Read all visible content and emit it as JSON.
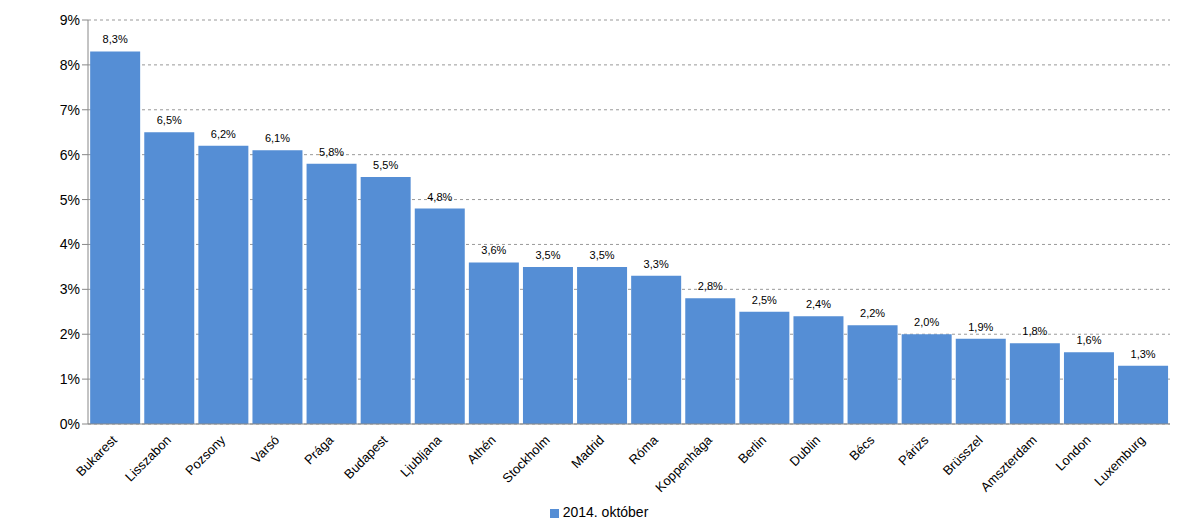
{
  "chart_data": {
    "type": "bar",
    "categories": [
      "Bukarest",
      "Lisszabon",
      "Pozsony",
      "Varsó",
      "Prága",
      "Budapest",
      "Ljubljana",
      "Athén",
      "Stockholm",
      "Madrid",
      "Róma",
      "Koppenhága",
      "Berlin",
      "Dublin",
      "Bécs",
      "Párizs",
      "Brüsszel",
      "Amszterdam",
      "London",
      "Luxemburg"
    ],
    "series": [
      {
        "name": "2014. október",
        "color": "#558ed5",
        "values": [
          8.3,
          6.5,
          6.2,
          6.1,
          5.8,
          5.5,
          4.8,
          3.6,
          3.5,
          3.5,
          3.3,
          2.8,
          2.5,
          2.4,
          2.2,
          2.0,
          1.9,
          1.8,
          1.6,
          1.3
        ],
        "value_labels": [
          "8,3%",
          "6,5%",
          "6,2%",
          "6,1%",
          "5,8%",
          "5,5%",
          "4,8%",
          "3,6%",
          "3,5%",
          "3,5%",
          "3,3%",
          "2,8%",
          "2,5%",
          "2,4%",
          "2,2%",
          "2,0%",
          "1,9%",
          "1,8%",
          "1,6%",
          "1,3%"
        ]
      }
    ],
    "ylim": [
      0,
      9
    ],
    "yticks": [
      {
        "value": 0,
        "label": "0%"
      },
      {
        "value": 1,
        "label": "1%"
      },
      {
        "value": 2,
        "label": "2%"
      },
      {
        "value": 3,
        "label": "3%"
      },
      {
        "value": 4,
        "label": "4%"
      },
      {
        "value": 5,
        "label": "5%"
      },
      {
        "value": 6,
        "label": "6%"
      },
      {
        "value": 7,
        "label": "7%"
      },
      {
        "value": 8,
        "label": "8%"
      },
      {
        "value": 9,
        "label": "9%"
      }
    ],
    "grid": true,
    "legend": "bottom",
    "data_labels": true
  }
}
